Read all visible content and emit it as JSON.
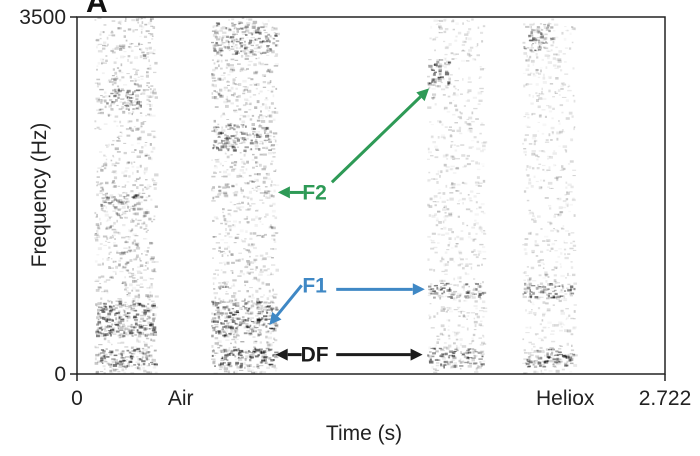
{
  "panel_letter": "A",
  "chart_data": {
    "type": "heatmap",
    "subtype": "spectrogram",
    "title": "",
    "xlabel": "Time (s)",
    "ylabel": "Frequency (Hz)",
    "xlim": [
      0,
      2.722
    ],
    "ylim": [
      0,
      3500
    ],
    "x_ticks": [
      {
        "value": 0,
        "label": "0"
      },
      {
        "value": 2.722,
        "label": "2.722"
      }
    ],
    "y_ticks": [
      {
        "value": 0,
        "label": "0"
      },
      {
        "value": 3500,
        "label": "3500"
      }
    ],
    "segment_labels": [
      {
        "label": "Air",
        "x": 0.48
      },
      {
        "label": "Heliox",
        "x": 2.26
      }
    ],
    "grid": false,
    "bands": [
      {
        "t0": 0.08,
        "t1": 0.36,
        "f0": 0,
        "f1": 3500,
        "intensity": 0.42
      },
      {
        "t0": 0.08,
        "t1": 0.36,
        "f0": 80,
        "f1": 260,
        "intensity": 0.85
      },
      {
        "t0": 0.08,
        "t1": 0.36,
        "f0": 380,
        "f1": 720,
        "intensity": 0.85
      },
      {
        "t0": 0.1,
        "t1": 0.3,
        "f0": 2600,
        "f1": 2800,
        "intensity": 0.7
      },
      {
        "t0": 0.1,
        "t1": 0.3,
        "f0": 1600,
        "f1": 1800,
        "intensity": 0.65
      },
      {
        "t0": 0.62,
        "t1": 0.92,
        "f0": 0,
        "f1": 3500,
        "intensity": 0.42
      },
      {
        "t0": 0.62,
        "t1": 0.92,
        "f0": 80,
        "f1": 260,
        "intensity": 0.9
      },
      {
        "t0": 0.62,
        "t1": 0.92,
        "f0": 380,
        "f1": 720,
        "intensity": 0.85
      },
      {
        "t0": 0.62,
        "t1": 0.9,
        "f0": 2200,
        "f1": 2450,
        "intensity": 0.75
      },
      {
        "t0": 0.62,
        "t1": 0.92,
        "f0": 3150,
        "f1": 3450,
        "intensity": 0.7
      },
      {
        "t0": 1.62,
        "t1": 1.88,
        "f0": 0,
        "f1": 3500,
        "intensity": 0.3
      },
      {
        "t0": 1.62,
        "t1": 1.88,
        "f0": 80,
        "f1": 260,
        "intensity": 0.85
      },
      {
        "t0": 1.62,
        "t1": 1.88,
        "f0": 750,
        "f1": 900,
        "intensity": 0.8
      },
      {
        "t0": 1.62,
        "t1": 1.72,
        "f0": 2850,
        "f1": 3100,
        "intensity": 0.85
      },
      {
        "t0": 2.06,
        "t1": 2.3,
        "f0": 0,
        "f1": 3500,
        "intensity": 0.3
      },
      {
        "t0": 2.06,
        "t1": 2.3,
        "f0": 80,
        "f1": 260,
        "intensity": 0.85
      },
      {
        "t0": 2.06,
        "t1": 2.3,
        "f0": 750,
        "f1": 900,
        "intensity": 0.8
      },
      {
        "t0": 2.06,
        "t1": 2.2,
        "f0": 3150,
        "f1": 3450,
        "intensity": 0.7
      }
    ],
    "annotations": [
      {
        "label": "F2",
        "color": "#2e9a56",
        "text_at": [
          1.1,
          1780
        ],
        "arrows": [
          {
            "from": [
              1.05,
              1780
            ],
            "to": [
              0.93,
              1780
            ]
          },
          {
            "from": [
              1.18,
              1880
            ],
            "to": [
              1.63,
              2800
            ]
          }
        ]
      },
      {
        "label": "F1",
        "color": "#3f88c5",
        "text_at": [
          1.1,
          870
        ],
        "arrows": [
          {
            "from": [
              1.04,
              870
            ],
            "to": [
              0.89,
              480
            ]
          },
          {
            "from": [
              1.2,
              830
            ],
            "to": [
              1.61,
              830
            ]
          }
        ]
      },
      {
        "label": "DF",
        "color": "#1c1c1c",
        "text_at": [
          1.1,
          190
        ],
        "arrows": [
          {
            "from": [
              1.04,
              190
            ],
            "to": [
              0.92,
              190
            ]
          },
          {
            "from": [
              1.2,
              190
            ],
            "to": [
              1.6,
              190
            ]
          }
        ]
      }
    ]
  }
}
